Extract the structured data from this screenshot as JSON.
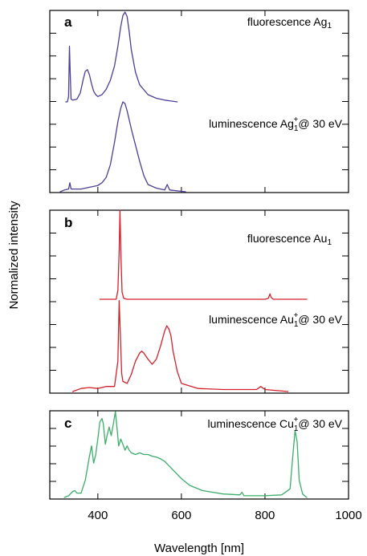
{
  "chart_data": {
    "type": "line",
    "ylabel": "Normalized intensity",
    "xlabel": "Wavelength [nm]",
    "x_ticks": [
      "400",
      "600",
      "800",
      "1000"
    ],
    "x_tick_values": [
      400,
      600,
      800,
      1000
    ],
    "xlim": [
      285,
      1000
    ],
    "grid": false,
    "panels": [
      {
        "letter": "a",
        "series": [
          {
            "name": "fluorescence Ag",
            "name_sub": "1",
            "name_sup": "",
            "name_tail": "",
            "color": "#4b3f9a",
            "x": [
              323,
              327,
              330,
              332,
              334,
              336,
              340,
              350,
              358,
              365,
              370,
              375,
              380,
              385,
              390,
              395,
              400,
              410,
              420,
              430,
              440,
              448,
              455,
              460,
              465,
              470,
              475,
              480,
              490,
              500,
              520,
              540,
              560,
              575,
              590
            ],
            "y": [
              0.0,
              0.0,
              0.06,
              0.62,
              0.3,
              0.03,
              0.02,
              0.03,
              0.1,
              0.25,
              0.34,
              0.36,
              0.3,
              0.2,
              0.12,
              0.08,
              0.06,
              0.08,
              0.14,
              0.24,
              0.4,
              0.62,
              0.84,
              0.96,
              1.0,
              0.95,
              0.78,
              0.58,
              0.33,
              0.19,
              0.08,
              0.04,
              0.02,
              0.01,
              0.0
            ]
          },
          {
            "name": "luminescence Ag",
            "name_sub": "1",
            "name_sup": "+",
            "name_tail": "@ 30 eV",
            "color": "#4b3f9a",
            "x": [
              310,
              320,
              330,
              333,
              336,
              345,
              360,
              380,
              400,
              410,
              420,
              430,
              440,
              448,
              455,
              460,
              465,
              470,
              475,
              480,
              490,
              500,
              510,
              520,
              540,
              560,
              566,
              572,
              590,
              610
            ],
            "y": [
              0.0,
              0.02,
              0.03,
              0.1,
              0.03,
              0.03,
              0.03,
              0.05,
              0.07,
              0.1,
              0.16,
              0.3,
              0.55,
              0.78,
              0.93,
              1.0,
              0.98,
              0.9,
              0.8,
              0.7,
              0.52,
              0.34,
              0.18,
              0.08,
              0.04,
              0.02,
              0.08,
              0.02,
              0.01,
              0.0
            ]
          }
        ]
      },
      {
        "letter": "b",
        "series": [
          {
            "name": "fluorescence Au",
            "name_sub": "1",
            "name_sup": "",
            "name_tail": "",
            "color": "#d4202a",
            "x": [
              405,
              430,
              444,
              448,
              451,
              453,
              455,
              458,
              462,
              470,
              500,
              600,
              700,
              800,
              808,
              812,
              815,
              820,
              840,
              900
            ],
            "y": [
              0.0,
              0.0,
              0.0,
              0.1,
              0.55,
              1.0,
              0.55,
              0.08,
              0.01,
              0.0,
              0.0,
              0.0,
              0.0,
              0.0,
              0.01,
              0.06,
              0.02,
              0.0,
              0.0,
              0.0
            ]
          },
          {
            "name": "luminescence Au",
            "name_sub": "1",
            "name_sup": "+",
            "name_tail": "@ 30 eV",
            "color": "#d4202a",
            "x": [
              340,
              360,
              380,
              400,
              420,
              440,
              448,
              451,
              454,
              457,
              460,
              470,
              480,
              490,
              500,
              505,
              510,
              520,
              530,
              540,
              550,
              560,
              565,
              570,
              575,
              580,
              590,
              600,
              640,
              700,
              780,
              790,
              800,
              855
            ],
            "y": [
              0.0,
              0.03,
              0.04,
              0.03,
              0.05,
              0.05,
              0.3,
              0.9,
              0.55,
              0.18,
              0.1,
              0.08,
              0.17,
              0.3,
              0.38,
              0.4,
              0.38,
              0.32,
              0.27,
              0.32,
              0.45,
              0.6,
              0.65,
              0.62,
              0.55,
              0.4,
              0.2,
              0.08,
              0.03,
              0.02,
              0.02,
              0.05,
              0.02,
              0.0
            ]
          }
        ]
      },
      {
        "letter": "c",
        "series": [
          {
            "name": "luminescence Cu",
            "name_sub": "1",
            "name_sup": "+",
            "name_tail": "@ 30 eV",
            "color": "#3cae6a",
            "x": [
              320,
              330,
              340,
              345,
              350,
              360,
              370,
              380,
              385,
              390,
              395,
              400,
              405,
              410,
              413,
              418,
              422,
              427,
              432,
              438,
              442,
              446,
              450,
              455,
              460,
              465,
              470,
              475,
              480,
              490,
              500,
              510,
              520,
              530,
              540,
              550,
              560,
              580,
              600,
              620,
              650,
              700,
              740,
              745,
              750,
              800,
              840,
              860,
              866,
              872,
              877,
              882,
              890,
              900
            ],
            "y": [
              0.0,
              0.02,
              0.07,
              0.08,
              0.05,
              0.05,
              0.2,
              0.48,
              0.6,
              0.4,
              0.5,
              0.68,
              0.88,
              0.92,
              0.86,
              0.62,
              0.72,
              0.82,
              0.72,
              0.88,
              1.0,
              0.8,
              0.6,
              0.68,
              0.62,
              0.55,
              0.6,
              0.55,
              0.52,
              0.5,
              0.52,
              0.5,
              0.5,
              0.48,
              0.47,
              0.45,
              0.42,
              0.32,
              0.22,
              0.14,
              0.08,
              0.04,
              0.03,
              0.06,
              0.02,
              0.02,
              0.03,
              0.1,
              0.45,
              0.78,
              0.65,
              0.2,
              0.04,
              0.0
            ]
          }
        ]
      }
    ]
  }
}
